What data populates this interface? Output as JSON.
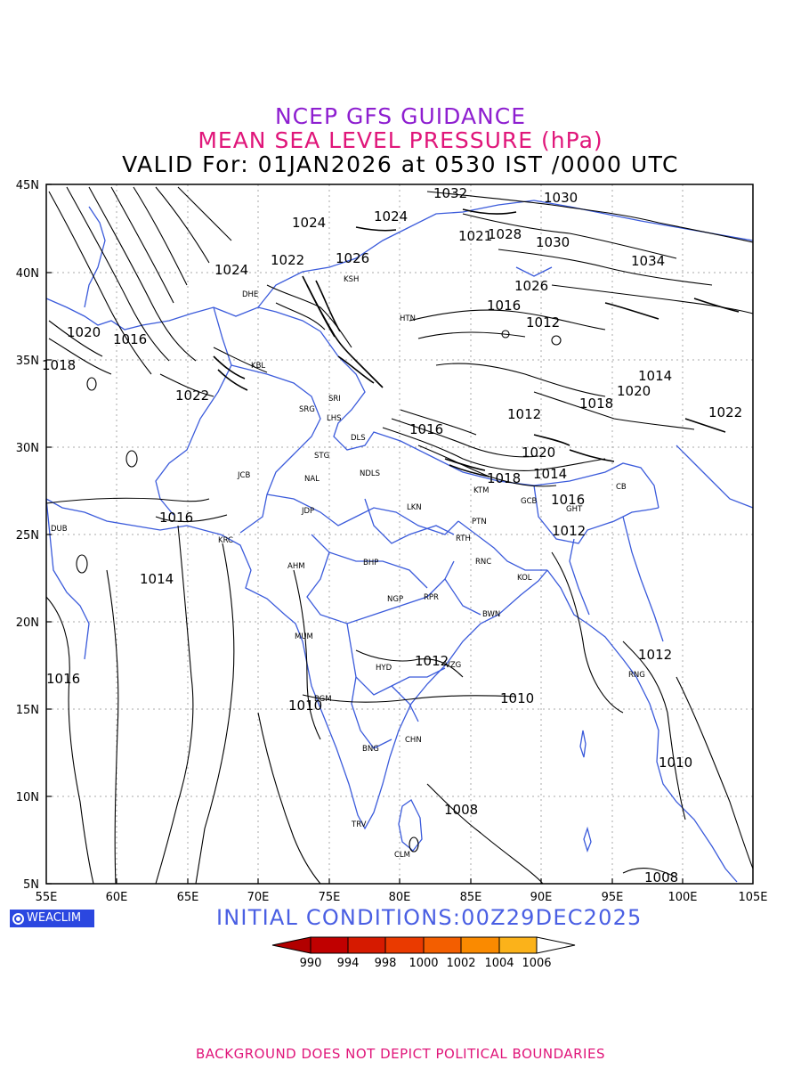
{
  "title": {
    "line1": "NCEP GFS GUIDANCE",
    "line2": "MEAN SEA LEVEL PRESSURE (hPa)",
    "line3": "VALID For: 01JAN2026 at 0530 IST /0000 UTC"
  },
  "axes": {
    "lat_labels": [
      "45N",
      "40N",
      "35N",
      "30N",
      "25N",
      "20N",
      "15N",
      "10N",
      "5N"
    ],
    "lon_labels": [
      "55E",
      "60E",
      "65E",
      "70E",
      "75E",
      "80E",
      "85E",
      "90E",
      "95E",
      "100E",
      "105E"
    ],
    "lat_range": [
      5,
      45
    ],
    "lon_range": [
      55,
      105
    ]
  },
  "stations": [
    "HTN",
    "KSH",
    "KBL",
    "DHE",
    "SRG",
    "LHS",
    "SRI",
    "DLS",
    "STG",
    "JCB",
    "NAL",
    "NDLS",
    "LKN",
    "JDP",
    "PTN",
    "RTH",
    "KTM",
    "GCB",
    "DUB",
    "KRC",
    "AHM",
    "BHP",
    "RNC",
    "KOL",
    "NGP",
    "RPR",
    "BWN",
    "MUM",
    "HYD",
    "VZG",
    "BGM",
    "CHN",
    "BNG",
    "TRV",
    "CLM",
    "RNG",
    "GHT",
    "CB"
  ],
  "contour_labels": [
    "1032",
    "1030",
    "1024",
    "1021",
    "1028",
    "1030",
    "1034",
    "1026",
    "1024",
    "1022",
    "1024",
    "1026",
    "1018",
    "1016",
    "1012",
    "1020",
    "1022",
    "1016",
    "1014",
    "1018",
    "1020",
    "1022",
    "1016",
    "1012",
    "1014",
    "1016",
    "1018",
    "1020",
    "1012",
    "1010",
    "1010",
    "1008",
    "1008",
    "1016",
    "1014",
    "1012",
    "1010",
    "1016",
    "1012"
  ],
  "colorbar": {
    "ticks": [
      "990",
      "994",
      "998",
      "1000",
      "1002",
      "1004",
      "1006"
    ],
    "colors": [
      "#c00000",
      "#d61a00",
      "#ea3a00",
      "#f35e00",
      "#fa8a00",
      "#fbb21a",
      "#fbd45c"
    ]
  },
  "logo_text": "WEACLIM",
  "initial_conditions": "INITIAL CONDITIONS:00Z29DEC2025",
  "footer": "BACKGROUND DOES NOT DEPICT POLITICAL BOUNDARIES",
  "colors": {
    "title_line1": "#8e1fd0",
    "title_line2": "#e0167a",
    "coastline": "#3b5bdb",
    "isobar": "#000000",
    "initial_conditions": "#4a5fe3",
    "footer": "#e0167a"
  }
}
